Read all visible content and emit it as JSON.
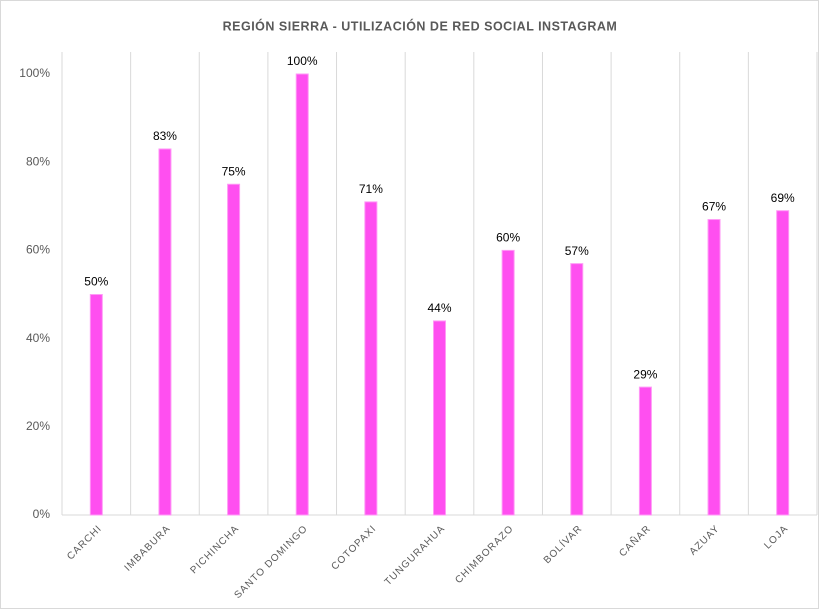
{
  "chart_data": {
    "type": "bar",
    "title": "REGIÓN SIERRA - UTILIZACIÓN DE RED SOCIAL INSTAGRAM",
    "categories": [
      "CARCHI",
      "IMBABURA",
      "PICHINCHA",
      "SANTO DOMINGO",
      "COTOPAXI",
      "TUNGURAHUA",
      "CHIMBORAZO",
      "BOLÍVAR",
      "CAÑAR",
      "AZUAY",
      "LOJA"
    ],
    "values": [
      50,
      83,
      75,
      100,
      71,
      44,
      60,
      57,
      29,
      67,
      69
    ],
    "value_labels": [
      "50%",
      "83%",
      "75%",
      "100%",
      "71%",
      "44%",
      "60%",
      "57%",
      "29%",
      "67%",
      "69%"
    ],
    "color": "#ff4ff0",
    "ylim": [
      0,
      100
    ],
    "yticks": [
      {
        "value": 0,
        "label": "0%"
      },
      {
        "value": 20,
        "label": "20%"
      },
      {
        "value": 40,
        "label": "40%"
      },
      {
        "value": 60,
        "label": "60%"
      },
      {
        "value": 80,
        "label": "80%"
      },
      {
        "value": 100,
        "label": "100%"
      }
    ],
    "grid": "x"
  }
}
